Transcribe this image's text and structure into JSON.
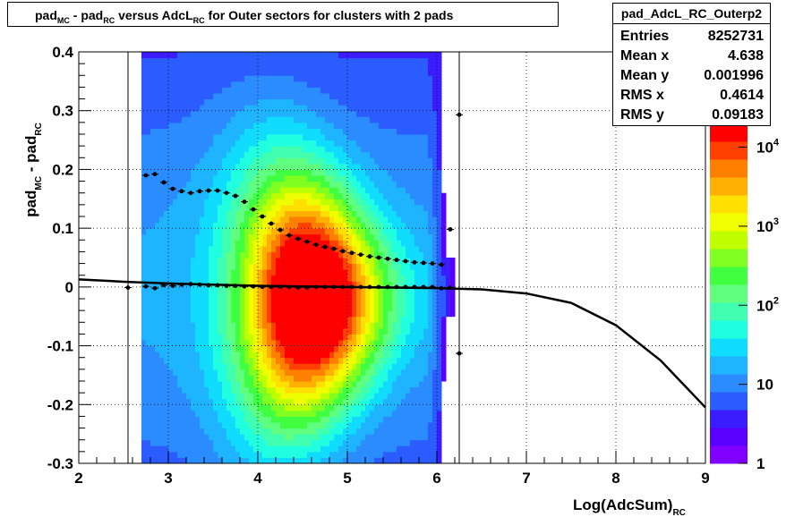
{
  "title": {
    "parts": [
      "pad",
      "MC",
      " - pad",
      "RC",
      " versus AdcL",
      "RC",
      " for Outer sectors for clusters with 2 pads"
    ]
  },
  "stats": {
    "name": "pad_AdcL_RC_Outerp2",
    "rows": [
      {
        "key": "Entries",
        "value": "8252731"
      },
      {
        "key": "Mean x",
        "value": "4.638"
      },
      {
        "key": "Mean y",
        "value": "0.001996"
      },
      {
        "key": "RMS x",
        "value": "0.4614"
      },
      {
        "key": "RMS y",
        "value": "0.09183"
      }
    ]
  },
  "colors": {
    "palette": [
      "#7f00ff",
      "#5a00ff",
      "#3a1cff",
      "#2a5cff",
      "#2a8cff",
      "#1eb4ff",
      "#10dcff",
      "#20ffe0",
      "#40ffb0",
      "#60ff80",
      "#40ff40",
      "#80ff20",
      "#c0ff00",
      "#f0ff00",
      "#ffe000",
      "#ffb000",
      "#ff8000",
      "#ff4000",
      "#ff0000"
    ],
    "markers": "#000000",
    "fit": "#000000"
  },
  "chart_data": {
    "type": "heatmap",
    "title": "pad_MC - pad_RC versus AdcL_RC for Outer sectors for clusters with 2 pads",
    "xlabel": "Log(AdcSum)_RC",
    "ylabel": "pad_MC - pad_RC",
    "xlim": [
      2,
      9
    ],
    "ylim": [
      -0.3,
      0.4
    ],
    "x_ticks": [
      2,
      3,
      4,
      5,
      6,
      7,
      8,
      9
    ],
    "y_ticks": [
      -0.3,
      -0.2,
      -0.1,
      0,
      0.1,
      0.2,
      0.3,
      0.4
    ],
    "y_tick_labels": [
      "-0.3",
      "-0.2",
      "-0.1",
      "0",
      "0.1",
      "0.2",
      "0.3",
      "0.4"
    ],
    "z_scale": "log",
    "z_ticks": [
      1,
      10,
      100,
      1000,
      10000
    ],
    "z_tick_labels": [
      "1",
      "10",
      "10^2",
      "10^3",
      "10^4"
    ],
    "grid": true,
    "heat_peak": {
      "x": 4.6,
      "y": -0.02
    },
    "heat_x_range": [
      2.7,
      6.2
    ],
    "rms_profile": {
      "x": [
        2.75,
        2.85,
        2.95,
        3.05,
        3.15,
        3.25,
        3.35,
        3.45,
        3.55,
        3.65,
        3.75,
        3.85,
        3.95,
        4.05,
        4.15,
        4.25,
        4.35,
        4.45,
        4.55,
        4.65,
        4.75,
        4.85,
        4.95,
        5.05,
        5.15,
        5.25,
        5.35,
        5.45,
        5.55,
        5.65,
        5.75,
        5.85,
        5.95,
        6.05,
        6.15,
        6.25
      ],
      "y": [
        0.19,
        0.192,
        0.178,
        0.167,
        0.163,
        0.16,
        0.163,
        0.164,
        0.164,
        0.16,
        0.155,
        0.145,
        0.132,
        0.12,
        0.108,
        0.097,
        0.088,
        0.082,
        0.077,
        0.072,
        0.068,
        0.065,
        0.061,
        0.058,
        0.055,
        0.052,
        0.05,
        0.048,
        0.046,
        0.044,
        0.042,
        0.041,
        0.04,
        0.038,
        0.098,
        0.293
      ]
    },
    "mean_profile": {
      "x": [
        2.55,
        2.75,
        2.85,
        2.95,
        3.05,
        3.15,
        3.25,
        3.35,
        3.45,
        3.55,
        3.65,
        3.75,
        3.85,
        3.95,
        4.05,
        4.15,
        4.25,
        4.35,
        4.45,
        4.55,
        4.65,
        4.75,
        4.85,
        4.95,
        5.05,
        5.15,
        5.25,
        5.35,
        5.45,
        5.55,
        5.65,
        5.75,
        5.85,
        5.95,
        6.05,
        6.15,
        6.25
      ],
      "y": [
        -0.001,
        0.001,
        -0.002,
        0.003,
        0.002,
        0.004,
        0.005,
        0.004,
        0.003,
        0.003,
        0.002,
        0.002,
        0.001,
        0.001,
        0.0,
        0.0,
        0.0,
        0.0,
        -0.001,
        -0.001,
        0.0,
        0.0,
        0.0,
        0.0,
        0.0,
        0.0,
        0.0,
        0.0,
        0.0,
        0.0,
        0.0,
        0.0,
        0.0,
        0.0,
        -0.002,
        -0.001,
        -0.113
      ]
    },
    "fit": {
      "x": [
        2.0,
        2.5,
        3.0,
        3.5,
        4.0,
        4.5,
        5.0,
        5.5,
        6.0,
        6.5,
        7.0,
        7.5,
        8.0,
        8.5,
        9.0
      ],
      "y": [
        0.013,
        0.009,
        0.006,
        0.004,
        0.002,
        0.001,
        0.0,
        -0.001,
        -0.002,
        -0.004,
        -0.011,
        -0.027,
        -0.065,
        -0.125,
        -0.205
      ]
    }
  }
}
